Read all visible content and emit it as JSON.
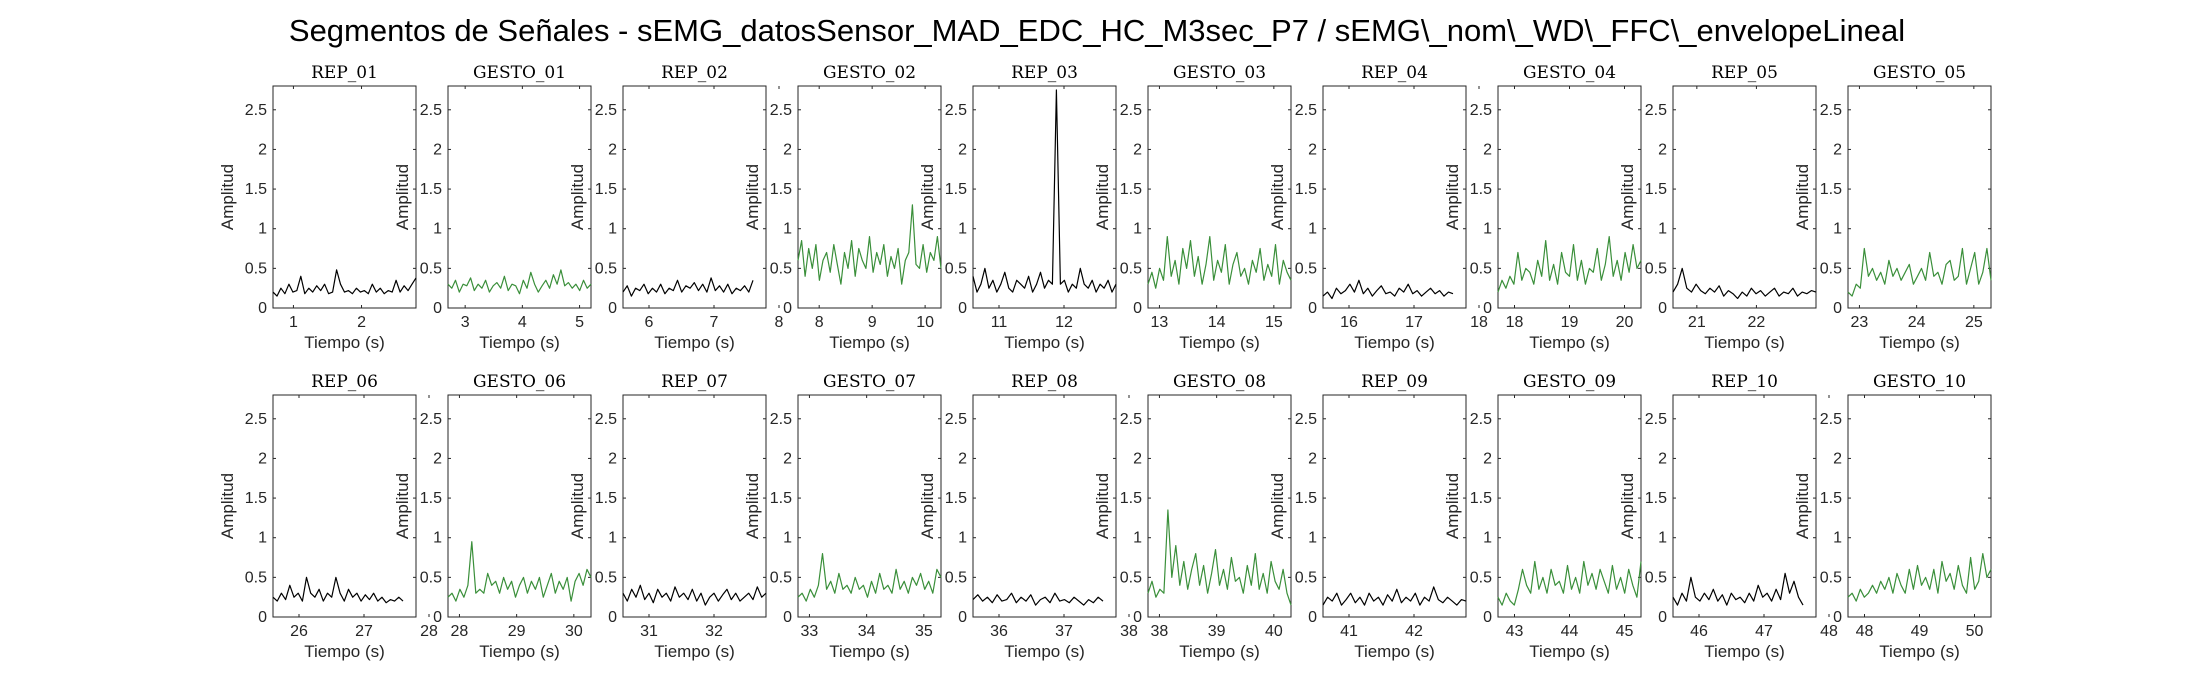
{
  "title": "Segmentos de Señales - sEMG_datosSensor_MAD_EDC_HC_M3sec_P7 / sEMG\\_nom\\_WD\\_FFC\\_envelopeLineal",
  "colors": {
    "rep": "#000000",
    "gesto": "#3a8f3a",
    "axis": "#262626"
  },
  "chart_data": [
    {
      "type": "line",
      "title": "REP_01",
      "color_role": "rep",
      "xlabel": "Tiempo (s)",
      "ylabel": "Amplitud",
      "xlim": [
        0.7,
        2.8
      ],
      "ylim": [
        0,
        2.8
      ],
      "xticks": [
        1,
        2
      ],
      "yticks": [
        0,
        0.5,
        1,
        1.5,
        2,
        2.5
      ],
      "x_start": 0.7,
      "x_end": 2.8,
      "y": [
        0.2,
        0.15,
        0.25,
        0.18,
        0.3,
        0.2,
        0.22,
        0.4,
        0.18,
        0.25,
        0.2,
        0.28,
        0.22,
        0.3,
        0.18,
        0.2,
        0.48,
        0.3,
        0.2,
        0.22,
        0.18,
        0.25,
        0.2,
        0.22,
        0.18,
        0.3,
        0.2,
        0.25,
        0.18,
        0.22,
        0.2,
        0.35,
        0.2,
        0.28,
        0.22,
        0.3,
        0.38
      ]
    },
    {
      "type": "line",
      "title": "GESTO_01",
      "color_role": "gesto",
      "xlabel": "Tiempo (s)",
      "ylabel": "Amplitud",
      "xlim": [
        2.7,
        5.2
      ],
      "ylim": [
        0,
        2.8
      ],
      "xticks": [
        3,
        4,
        5
      ],
      "yticks": [
        0,
        0.5,
        1,
        1.5,
        2,
        2.5
      ],
      "x_start": 2.7,
      "x_end": 5.2,
      "y": [
        0.3,
        0.25,
        0.35,
        0.2,
        0.3,
        0.28,
        0.38,
        0.22,
        0.3,
        0.25,
        0.35,
        0.2,
        0.28,
        0.32,
        0.25,
        0.4,
        0.22,
        0.3,
        0.28,
        0.18,
        0.35,
        0.25,
        0.45,
        0.3,
        0.2,
        0.28,
        0.35,
        0.25,
        0.42,
        0.3,
        0.48,
        0.28,
        0.32,
        0.25,
        0.3,
        0.22,
        0.35,
        0.25,
        0.3
      ]
    },
    {
      "type": "line",
      "title": "REP_02",
      "color_role": "rep",
      "xlabel": "Tiempo (s)",
      "ylabel": "Amplitud",
      "xlim": [
        5.6,
        7.8
      ],
      "ylim": [
        0,
        2.8
      ],
      "xticks": [
        6,
        7,
        8
      ],
      "yticks": [
        0,
        0.5,
        1,
        1.5,
        2,
        2.5
      ],
      "x_start": 5.6,
      "x_end": 7.6,
      "y": [
        0.2,
        0.28,
        0.15,
        0.25,
        0.22,
        0.3,
        0.18,
        0.25,
        0.2,
        0.3,
        0.18,
        0.25,
        0.22,
        0.35,
        0.2,
        0.28,
        0.25,
        0.32,
        0.22,
        0.3,
        0.2,
        0.38,
        0.22,
        0.28,
        0.2,
        0.3,
        0.18,
        0.25,
        0.22,
        0.28,
        0.2,
        0.35
      ]
    },
    {
      "type": "line",
      "title": "GESTO_02",
      "color_role": "gesto",
      "xlabel": "Tiempo (s)",
      "ylabel": "Amplitud",
      "xlim": [
        7.6,
        10.3
      ],
      "ylim": [
        0,
        2.8
      ],
      "xticks": [
        8,
        9,
        10
      ],
      "yticks": [
        0,
        0.5,
        1,
        1.5,
        2,
        2.5
      ],
      "x_start": 7.6,
      "x_end": 10.3,
      "y": [
        0.6,
        0.85,
        0.4,
        0.75,
        0.5,
        0.8,
        0.35,
        0.6,
        0.7,
        0.45,
        0.8,
        0.55,
        0.3,
        0.7,
        0.5,
        0.85,
        0.4,
        0.75,
        0.6,
        0.5,
        0.9,
        0.45,
        0.7,
        0.55,
        0.8,
        0.4,
        0.65,
        0.5,
        0.75,
        0.3,
        0.6,
        0.7,
        1.3,
        0.55,
        0.5,
        0.8,
        0.45,
        0.7,
        0.6,
        0.9,
        0.5
      ]
    },
    {
      "type": "line",
      "title": "REP_03",
      "color_role": "rep",
      "xlabel": "Tiempo (s)",
      "ylabel": "Amplitud",
      "xlim": [
        10.6,
        12.8
      ],
      "ylim": [
        0,
        2.8
      ],
      "xticks": [
        11,
        12
      ],
      "yticks": [
        0,
        0.5,
        1,
        1.5,
        2,
        2.5
      ],
      "x_start": 10.6,
      "x_end": 12.8,
      "y": [
        0.4,
        0.2,
        0.3,
        0.5,
        0.25,
        0.35,
        0.2,
        0.3,
        0.45,
        0.25,
        0.2,
        0.35,
        0.3,
        0.25,
        0.4,
        0.2,
        0.3,
        0.45,
        0.25,
        0.35,
        0.3,
        2.75,
        0.3,
        0.35,
        0.2,
        0.3,
        0.25,
        0.5,
        0.3,
        0.25,
        0.35,
        0.2,
        0.3,
        0.25,
        0.35,
        0.2,
        0.3
      ]
    },
    {
      "type": "line",
      "title": "GESTO_03",
      "color_role": "gesto",
      "xlabel": "Tiempo (s)",
      "ylabel": "Amplitud",
      "xlim": [
        12.8,
        15.3
      ],
      "ylim": [
        0,
        2.8
      ],
      "xticks": [
        13,
        14,
        15
      ],
      "yticks": [
        0,
        0.5,
        1,
        1.5,
        2,
        2.5
      ],
      "x_start": 12.8,
      "x_end": 15.3,
      "y": [
        0.3,
        0.45,
        0.25,
        0.5,
        0.35,
        0.9,
        0.4,
        0.6,
        0.3,
        0.75,
        0.5,
        0.85,
        0.4,
        0.65,
        0.3,
        0.55,
        0.9,
        0.35,
        0.6,
        0.45,
        0.8,
        0.3,
        0.55,
        0.7,
        0.4,
        0.5,
        0.3,
        0.6,
        0.45,
        0.75,
        0.35,
        0.55,
        0.4,
        0.8,
        0.3,
        0.6,
        0.45,
        0.35
      ]
    },
    {
      "type": "line",
      "title": "REP_04",
      "color_role": "rep",
      "xlabel": "Tiempo (s)",
      "ylabel": "Amplitud",
      "xlim": [
        15.6,
        17.8
      ],
      "ylim": [
        0,
        2.8
      ],
      "xticks": [
        16,
        17,
        18
      ],
      "yticks": [
        0,
        0.5,
        1,
        1.5,
        2,
        2.5
      ],
      "x_start": 15.6,
      "x_end": 17.6,
      "y": [
        0.15,
        0.2,
        0.12,
        0.25,
        0.18,
        0.22,
        0.3,
        0.2,
        0.35,
        0.18,
        0.25,
        0.15,
        0.22,
        0.28,
        0.18,
        0.2,
        0.15,
        0.25,
        0.2,
        0.3,
        0.18,
        0.22,
        0.15,
        0.2,
        0.25,
        0.18,
        0.22,
        0.15,
        0.2,
        0.18
      ]
    },
    {
      "type": "line",
      "title": "GESTO_04",
      "color_role": "gesto",
      "xlabel": "Tiempo (s)",
      "ylabel": "Amplitud",
      "xlim": [
        17.7,
        20.3
      ],
      "ylim": [
        0,
        2.8
      ],
      "xticks": [
        18,
        19,
        20
      ],
      "yticks": [
        0,
        0.5,
        1,
        1.5,
        2,
        2.5
      ],
      "x_start": 17.7,
      "x_end": 20.3,
      "y": [
        0.2,
        0.35,
        0.25,
        0.4,
        0.3,
        0.7,
        0.35,
        0.5,
        0.45,
        0.3,
        0.6,
        0.4,
        0.85,
        0.35,
        0.55,
        0.3,
        0.7,
        0.45,
        0.4,
        0.8,
        0.35,
        0.6,
        0.3,
        0.5,
        0.45,
        0.75,
        0.35,
        0.55,
        0.9,
        0.4,
        0.6,
        0.35,
        0.7,
        0.45,
        0.8,
        0.5,
        0.6
      ]
    },
    {
      "type": "line",
      "title": "REP_05",
      "color_role": "rep",
      "xlabel": "Tiempo (s)",
      "ylabel": "Amplitud",
      "xlim": [
        20.6,
        23.0
      ],
      "ylim": [
        0,
        2.8
      ],
      "xticks": [
        21,
        22
      ],
      "yticks": [
        0,
        0.5,
        1,
        1.5,
        2,
        2.5
      ],
      "x_start": 20.6,
      "x_end": 23.0,
      "y": [
        0.2,
        0.3,
        0.5,
        0.25,
        0.2,
        0.3,
        0.22,
        0.18,
        0.25,
        0.2,
        0.28,
        0.15,
        0.22,
        0.18,
        0.12,
        0.2,
        0.15,
        0.25,
        0.18,
        0.22,
        0.15,
        0.2,
        0.25,
        0.15,
        0.2,
        0.18,
        0.25,
        0.15,
        0.2,
        0.18,
        0.22,
        0.2
      ]
    },
    {
      "type": "line",
      "title": "GESTO_05",
      "color_role": "gesto",
      "xlabel": "Tiempo (s)",
      "ylabel": "Amplitud",
      "xlim": [
        22.8,
        25.3
      ],
      "ylim": [
        0,
        2.8
      ],
      "xticks": [
        23,
        24,
        25
      ],
      "yticks": [
        0,
        0.5,
        1,
        1.5,
        2,
        2.5
      ],
      "x_start": 22.8,
      "x_end": 25.3,
      "y": [
        0.2,
        0.15,
        0.3,
        0.25,
        0.75,
        0.4,
        0.5,
        0.35,
        0.45,
        0.3,
        0.6,
        0.4,
        0.5,
        0.35,
        0.45,
        0.55,
        0.3,
        0.4,
        0.5,
        0.35,
        0.7,
        0.4,
        0.45,
        0.3,
        0.55,
        0.6,
        0.35,
        0.4,
        0.75,
        0.3,
        0.5,
        0.7,
        0.3,
        0.45,
        0.75,
        0.35
      ]
    },
    {
      "type": "line",
      "title": "REP_06",
      "color_role": "rep",
      "xlabel": "Tiempo (s)",
      "ylabel": "Amplitud",
      "xlim": [
        25.6,
        27.8
      ],
      "ylim": [
        0,
        2.8
      ],
      "xticks": [
        26,
        27,
        28
      ],
      "yticks": [
        0,
        0.5,
        1,
        1.5,
        2,
        2.5
      ],
      "x_start": 25.6,
      "x_end": 27.6,
      "y": [
        0.25,
        0.2,
        0.3,
        0.22,
        0.4,
        0.25,
        0.3,
        0.2,
        0.5,
        0.3,
        0.25,
        0.35,
        0.2,
        0.3,
        0.25,
        0.5,
        0.3,
        0.2,
        0.35,
        0.25,
        0.3,
        0.2,
        0.28,
        0.22,
        0.3,
        0.2,
        0.25,
        0.18,
        0.22,
        0.2,
        0.25,
        0.2
      ]
    },
    {
      "type": "line",
      "title": "GESTO_06",
      "color_role": "gesto",
      "xlabel": "Tiempo (s)",
      "ylabel": "Amplitud",
      "xlim": [
        27.8,
        30.3
      ],
      "ylim": [
        0,
        2.8
      ],
      "xticks": [
        28,
        29,
        30
      ],
      "yticks": [
        0,
        0.5,
        1,
        1.5,
        2,
        2.5
      ],
      "x_start": 27.8,
      "x_end": 30.3,
      "y": [
        0.25,
        0.3,
        0.2,
        0.35,
        0.25,
        0.4,
        0.95,
        0.3,
        0.35,
        0.3,
        0.55,
        0.4,
        0.45,
        0.3,
        0.5,
        0.35,
        0.45,
        0.25,
        0.4,
        0.5,
        0.3,
        0.45,
        0.35,
        0.5,
        0.25,
        0.4,
        0.55,
        0.3,
        0.45,
        0.35,
        0.5,
        0.2,
        0.45,
        0.55,
        0.4,
        0.6,
        0.5
      ]
    },
    {
      "type": "line",
      "title": "REP_07",
      "color_role": "rep",
      "xlabel": "Tiempo (s)",
      "ylabel": "Amplitud",
      "xlim": [
        30.6,
        32.8
      ],
      "ylim": [
        0,
        2.8
      ],
      "xticks": [
        31,
        32
      ],
      "yticks": [
        0,
        0.5,
        1,
        1.5,
        2,
        2.5
      ],
      "x_start": 30.6,
      "x_end": 32.8,
      "y": [
        0.3,
        0.2,
        0.35,
        0.25,
        0.4,
        0.22,
        0.3,
        0.18,
        0.35,
        0.25,
        0.3,
        0.2,
        0.38,
        0.25,
        0.3,
        0.22,
        0.35,
        0.2,
        0.3,
        0.15,
        0.25,
        0.3,
        0.2,
        0.28,
        0.35,
        0.22,
        0.3,
        0.2,
        0.25,
        0.3,
        0.22,
        0.38,
        0.25,
        0.3
      ]
    },
    {
      "type": "line",
      "title": "GESTO_07",
      "color_role": "gesto",
      "xlabel": "Tiempo (s)",
      "ylabel": "Amplitud",
      "xlim": [
        32.8,
        35.3
      ],
      "ylim": [
        0,
        2.8
      ],
      "xticks": [
        33,
        34,
        35
      ],
      "yticks": [
        0,
        0.5,
        1,
        1.5,
        2,
        2.5
      ],
      "x_start": 32.8,
      "x_end": 35.3,
      "y": [
        0.25,
        0.3,
        0.2,
        0.35,
        0.25,
        0.4,
        0.8,
        0.35,
        0.45,
        0.3,
        0.55,
        0.35,
        0.4,
        0.3,
        0.5,
        0.35,
        0.4,
        0.25,
        0.45,
        0.3,
        0.55,
        0.35,
        0.4,
        0.3,
        0.6,
        0.35,
        0.45,
        0.3,
        0.5,
        0.4,
        0.55,
        0.35,
        0.45,
        0.3,
        0.6,
        0.5
      ]
    },
    {
      "type": "line",
      "title": "REP_08",
      "color_role": "rep",
      "xlabel": "Tiempo (s)",
      "ylabel": "Amplitud",
      "xlim": [
        35.6,
        37.8
      ],
      "ylim": [
        0,
        2.8
      ],
      "xticks": [
        36,
        37,
        38
      ],
      "yticks": [
        0,
        0.5,
        1,
        1.5,
        2,
        2.5
      ],
      "x_start": 35.6,
      "x_end": 37.6,
      "y": [
        0.22,
        0.28,
        0.2,
        0.25,
        0.18,
        0.28,
        0.2,
        0.22,
        0.3,
        0.18,
        0.25,
        0.2,
        0.28,
        0.15,
        0.22,
        0.25,
        0.18,
        0.3,
        0.2,
        0.22,
        0.18,
        0.25,
        0.2,
        0.15,
        0.22,
        0.18,
        0.25,
        0.2
      ]
    },
    {
      "type": "line",
      "title": "GESTO_08",
      "color_role": "gesto",
      "xlabel": "Tiempo (s)",
      "ylabel": "Amplitud",
      "xlim": [
        37.8,
        40.3
      ],
      "ylim": [
        0,
        2.8
      ],
      "xticks": [
        38,
        39,
        40
      ],
      "yticks": [
        0,
        0.5,
        1,
        1.5,
        2,
        2.5
      ],
      "x_start": 37.8,
      "x_end": 40.3,
      "y": [
        0.3,
        0.45,
        0.25,
        0.35,
        0.3,
        1.35,
        0.5,
        0.9,
        0.4,
        0.7,
        0.35,
        0.6,
        0.8,
        0.4,
        0.65,
        0.3,
        0.55,
        0.85,
        0.4,
        0.6,
        0.35,
        0.75,
        0.45,
        0.5,
        0.3,
        0.65,
        0.4,
        0.8,
        0.35,
        0.55,
        0.3,
        0.7,
        0.45,
        0.35,
        0.6,
        0.3,
        0.15
      ]
    },
    {
      "type": "line",
      "title": "REP_09",
      "color_role": "rep",
      "xlabel": "Tiempo (s)",
      "ylabel": "Amplitud",
      "xlim": [
        40.6,
        42.8
      ],
      "ylim": [
        0,
        2.8
      ],
      "xticks": [
        41,
        42
      ],
      "yticks": [
        0,
        0.5,
        1,
        1.5,
        2,
        2.5
      ],
      "x_start": 40.6,
      "x_end": 42.8,
      "y": [
        0.15,
        0.25,
        0.2,
        0.3,
        0.15,
        0.22,
        0.3,
        0.18,
        0.25,
        0.15,
        0.3,
        0.2,
        0.25,
        0.15,
        0.28,
        0.2,
        0.35,
        0.18,
        0.25,
        0.2,
        0.3,
        0.15,
        0.25,
        0.2,
        0.38,
        0.22,
        0.18,
        0.25,
        0.2,
        0.15,
        0.22,
        0.2
      ]
    },
    {
      "type": "line",
      "title": "GESTO_09",
      "color_role": "gesto",
      "xlabel": "Tiempo (s)",
      "ylabel": "Amplitud",
      "xlim": [
        42.7,
        45.3
      ],
      "ylim": [
        0,
        2.8
      ],
      "xticks": [
        43,
        44,
        45
      ],
      "yticks": [
        0,
        0.5,
        1,
        1.5,
        2,
        2.5
      ],
      "x_start": 42.7,
      "x_end": 45.3,
      "y": [
        0.25,
        0.15,
        0.3,
        0.2,
        0.15,
        0.35,
        0.6,
        0.4,
        0.3,
        0.7,
        0.35,
        0.5,
        0.3,
        0.6,
        0.4,
        0.45,
        0.3,
        0.65,
        0.35,
        0.5,
        0.3,
        0.7,
        0.4,
        0.55,
        0.35,
        0.6,
        0.45,
        0.3,
        0.65,
        0.35,
        0.5,
        0.3,
        0.6,
        0.4,
        0.25,
        0.7
      ]
    },
    {
      "type": "line",
      "title": "REP_10",
      "color_role": "rep",
      "xlabel": "Tiempo (s)",
      "ylabel": "Amplitud",
      "xlim": [
        45.6,
        47.8
      ],
      "ylim": [
        0,
        2.8
      ],
      "xticks": [
        46,
        47,
        48
      ],
      "yticks": [
        0,
        0.5,
        1,
        1.5,
        2,
        2.5
      ],
      "x_start": 45.6,
      "x_end": 47.6,
      "y": [
        0.25,
        0.15,
        0.3,
        0.2,
        0.5,
        0.25,
        0.2,
        0.3,
        0.22,
        0.35,
        0.2,
        0.28,
        0.15,
        0.3,
        0.22,
        0.25,
        0.18,
        0.3,
        0.2,
        0.4,
        0.25,
        0.3,
        0.2,
        0.35,
        0.22,
        0.55,
        0.3,
        0.45,
        0.25,
        0.15
      ]
    },
    {
      "type": "line",
      "title": "GESTO_10",
      "color_role": "gesto",
      "xlabel": "Tiempo (s)",
      "ylabel": "Amplitud",
      "xlim": [
        47.7,
        50.3
      ],
      "ylim": [
        0,
        2.8
      ],
      "xticks": [
        48,
        49,
        50
      ],
      "yticks": [
        0,
        0.5,
        1,
        1.5,
        2,
        2.5
      ],
      "x_start": 47.7,
      "x_end": 50.3,
      "y": [
        0.25,
        0.3,
        0.2,
        0.35,
        0.25,
        0.3,
        0.4,
        0.3,
        0.45,
        0.35,
        0.5,
        0.3,
        0.55,
        0.4,
        0.3,
        0.6,
        0.35,
        0.65,
        0.4,
        0.5,
        0.35,
        0.6,
        0.3,
        0.7,
        0.45,
        0.55,
        0.35,
        0.65,
        0.4,
        0.3,
        0.75,
        0.35,
        0.45,
        0.8,
        0.5,
        0.6
      ]
    }
  ]
}
